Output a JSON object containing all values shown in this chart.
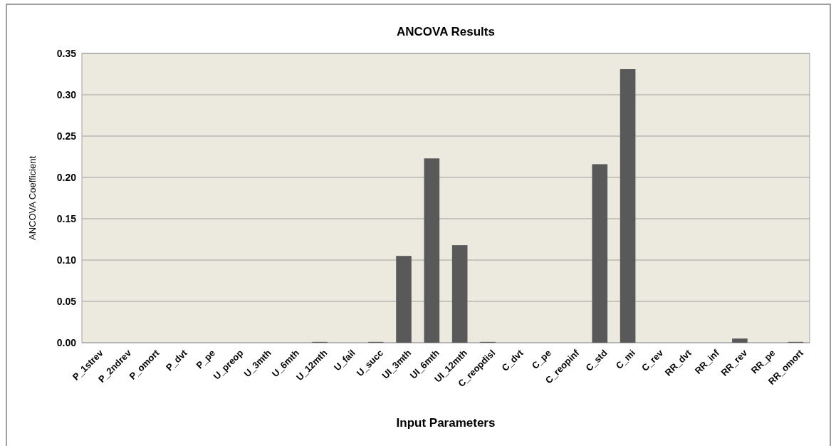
{
  "chart_data": {
    "type": "bar",
    "title": "ANCOVA Results",
    "xlabel": "Input Parameters",
    "ylabel": "ANCOVA Coefficient",
    "categories": [
      "P_1strev",
      "P_2ndrev",
      "P_omort",
      "P_dvt",
      "P_pe",
      "U_preop",
      "U_3mth",
      "U_6mth",
      "U_12mth",
      "U_fail",
      "U_succ",
      "UI_3mth",
      "UI_6mth",
      "UI_12mth",
      "C_reopdisl",
      "C_dvt",
      "C_pe",
      "C_reopinf",
      "C_std",
      "C_mi",
      "C_rev",
      "RR_dvt",
      "RR_inf",
      "RR_rev",
      "RR_pe",
      "RR_omort"
    ],
    "values": [
      0,
      0,
      0,
      0,
      0,
      0,
      0,
      0,
      0.001,
      0,
      0.001,
      0.105,
      0.223,
      0.118,
      0.001,
      0,
      0,
      0,
      0.216,
      0.331,
      0,
      0,
      0,
      0.005,
      0,
      0.001
    ],
    "color": "#595959",
    "ylim": [
      0,
      0.35
    ],
    "yticks": [
      {
        "value": 0,
        "label": "0.00"
      },
      {
        "value": 0.05,
        "label": "0.05"
      },
      {
        "value": 0.1,
        "label": "0.10"
      },
      {
        "value": 0.15,
        "label": "0.15"
      },
      {
        "value": 0.2,
        "label": "0.20"
      },
      {
        "value": 0.25,
        "label": "0.25"
      },
      {
        "value": 0.3,
        "label": "0.30"
      },
      {
        "value": 0.35,
        "label": "0.35"
      }
    ],
    "grid": "y"
  }
}
